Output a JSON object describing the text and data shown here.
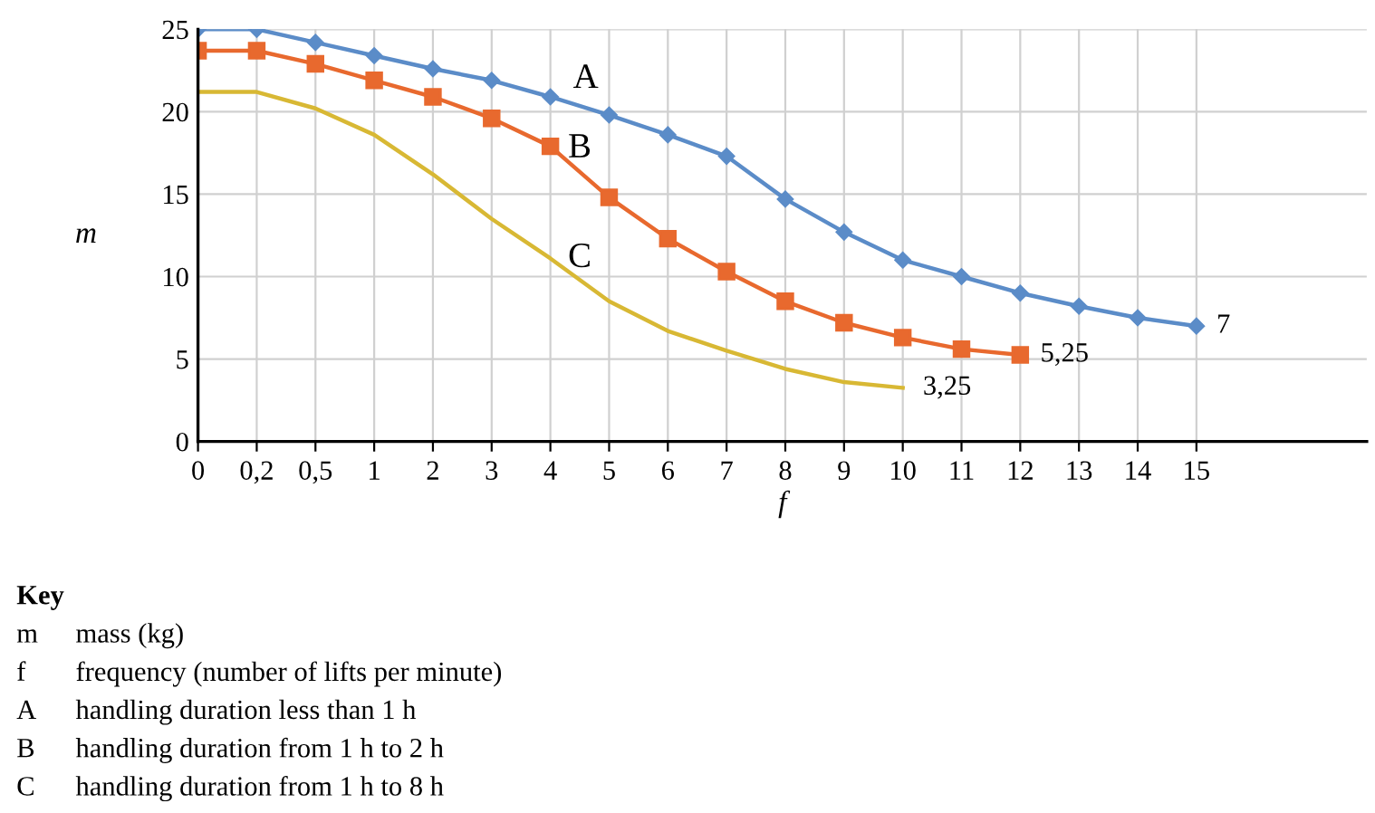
{
  "chart_data": {
    "type": "line",
    "xlabel": "f",
    "ylabel": "m",
    "categories": [
      "0",
      "0,2",
      "0,5",
      "1",
      "2",
      "3",
      "4",
      "5",
      "6",
      "7",
      "8",
      "9",
      "10",
      "11",
      "12",
      "13",
      "14",
      "15"
    ],
    "series": [
      {
        "name": "A",
        "color": "#5b8cc8",
        "marker": "diamond",
        "values": [
          25,
          25,
          24.2,
          23.4,
          22.6,
          21.9,
          20.9,
          19.8,
          18.6,
          17.3,
          14.7,
          12.7,
          11.0,
          10.0,
          9.0,
          8.2,
          7.5,
          7
        ],
        "value_labels": [
          null,
          null,
          null,
          null,
          null,
          null,
          null,
          null,
          null,
          null,
          null,
          null,
          null,
          null,
          null,
          null,
          null,
          "7"
        ]
      },
      {
        "name": "B",
        "color": "#e8692e",
        "marker": "square",
        "values": [
          23.7,
          23.7,
          22.9,
          21.9,
          20.9,
          19.6,
          17.9,
          14.8,
          12.3,
          10.3,
          8.5,
          7.2,
          6.3,
          5.6,
          5.25,
          null,
          null,
          null
        ],
        "value_labels": [
          null,
          null,
          null,
          null,
          null,
          null,
          null,
          null,
          null,
          null,
          null,
          null,
          null,
          null,
          "5,25",
          null,
          null,
          null
        ]
      },
      {
        "name": "C",
        "color": "#d8b834",
        "marker": "none",
        "values": [
          21.2,
          21.2,
          20.2,
          18.6,
          16.2,
          13.5,
          11.1,
          8.5,
          6.7,
          5.5,
          4.4,
          3.6,
          3.25,
          null,
          null,
          null,
          null,
          null
        ],
        "value_labels": [
          null,
          null,
          null,
          null,
          null,
          null,
          null,
          null,
          null,
          null,
          null,
          null,
          "3,25",
          null,
          null,
          null,
          null,
          null
        ]
      }
    ],
    "ylim": [
      0,
      25
    ],
    "yticks": [
      0,
      5,
      10,
      15,
      20,
      25
    ],
    "grid": true,
    "legend": false,
    "annotations": [
      "Key",
      "m mass (kg)",
      "f frequency (number of lifts per minute)",
      "A handling duration less than 1 h",
      "B handling duration from 1 h to 2 h",
      "C handling duration from 1 h to 8 h"
    ]
  }
}
